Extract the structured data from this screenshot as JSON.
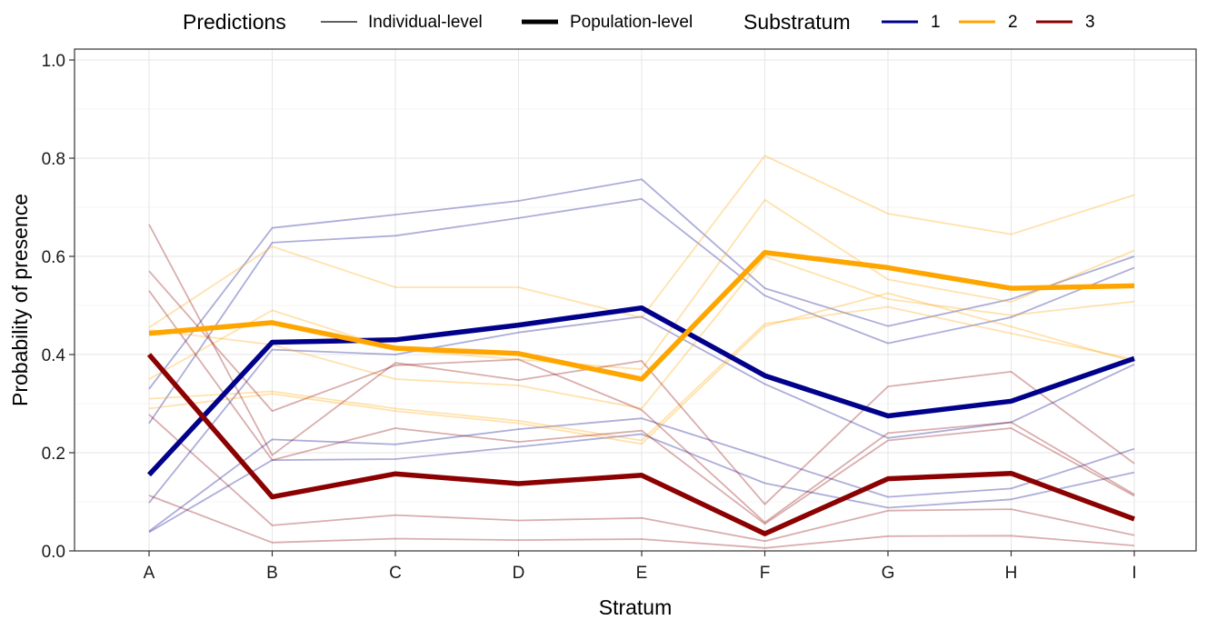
{
  "chart_data": {
    "type": "line",
    "xlabel": "Stratum",
    "ylabel": "Probability of presence",
    "categories": [
      "A",
      "B",
      "C",
      "D",
      "E",
      "F",
      "G",
      "H",
      "I"
    ],
    "ylim": [
      0,
      1.0
    ],
    "yticks": [
      0.0,
      0.2,
      0.4,
      0.6,
      0.8,
      1.0
    ],
    "ytick_labels": [
      "0.0",
      "0.2",
      "0.4",
      "0.6",
      "0.8",
      "1.0"
    ],
    "grid": true,
    "legend_position": "top",
    "legend": {
      "predictions_title": "Predictions",
      "predictions_items": [
        "Individual-level",
        "Population-level"
      ],
      "substratum_title": "Substratum",
      "substratum_items": [
        "1",
        "2",
        "3"
      ]
    },
    "colors": {
      "1": "#00008B",
      "2": "#FFA500",
      "3": "#8B0000"
    },
    "population_level": [
      {
        "name": "1",
        "values": [
          0.155,
          0.425,
          0.43,
          0.46,
          0.495,
          0.357,
          0.275,
          0.305,
          0.392
        ]
      },
      {
        "name": "2",
        "values": [
          0.443,
          0.465,
          0.413,
          0.402,
          0.35,
          0.608,
          0.577,
          0.535,
          0.54
        ]
      },
      {
        "name": "3",
        "values": [
          0.4,
          0.11,
          0.157,
          0.137,
          0.154,
          0.035,
          0.147,
          0.158,
          0.065
        ]
      }
    ],
    "individual_level": [
      {
        "name": "1",
        "values": [
          0.33,
          0.658,
          0.685,
          0.713,
          0.757,
          0.535,
          0.458,
          0.513,
          0.6
        ]
      },
      {
        "name": "1",
        "values": [
          0.26,
          0.628,
          0.642,
          0.678,
          0.717,
          0.52,
          0.423,
          0.476,
          0.577
        ]
      },
      {
        "name": "1",
        "values": [
          0.098,
          0.41,
          0.4,
          0.445,
          0.477,
          0.34,
          0.23,
          0.262,
          0.38
        ]
      },
      {
        "name": "1",
        "values": [
          0.04,
          0.227,
          0.217,
          0.248,
          0.27,
          0.19,
          0.11,
          0.127,
          0.208
        ]
      },
      {
        "name": "1",
        "values": [
          0.038,
          0.185,
          0.187,
          0.212,
          0.238,
          0.138,
          0.088,
          0.105,
          0.16
        ]
      },
      {
        "name": "2",
        "values": [
          0.455,
          0.62,
          0.537,
          0.537,
          0.475,
          0.805,
          0.687,
          0.645,
          0.725
        ]
      },
      {
        "name": "2",
        "values": [
          0.35,
          0.49,
          0.41,
          0.39,
          0.37,
          0.715,
          0.553,
          0.507,
          0.612
        ]
      },
      {
        "name": "2",
        "values": [
          0.45,
          0.42,
          0.35,
          0.337,
          0.29,
          0.6,
          0.513,
          0.48,
          0.508
        ]
      },
      {
        "name": "2",
        "values": [
          0.31,
          0.325,
          0.29,
          0.265,
          0.225,
          0.463,
          0.497,
          0.443,
          0.39
        ]
      },
      {
        "name": "2",
        "values": [
          0.29,
          0.32,
          0.285,
          0.26,
          0.218,
          0.458,
          0.525,
          0.457,
          0.385
        ]
      },
      {
        "name": "3",
        "values": [
          0.665,
          0.195,
          0.383,
          0.348,
          0.387,
          0.095,
          0.335,
          0.365,
          0.178
        ]
      },
      {
        "name": "3",
        "values": [
          0.57,
          0.285,
          0.378,
          0.39,
          0.287,
          0.058,
          0.24,
          0.262,
          0.115
        ]
      },
      {
        "name": "3",
        "values": [
          0.53,
          0.185,
          0.25,
          0.222,
          0.245,
          0.055,
          0.225,
          0.25,
          0.112
        ]
      },
      {
        "name": "3",
        "values": [
          0.278,
          0.052,
          0.073,
          0.062,
          0.067,
          0.02,
          0.082,
          0.085,
          0.032
        ]
      },
      {
        "name": "3",
        "values": [
          0.113,
          0.017,
          0.025,
          0.022,
          0.024,
          0.006,
          0.03,
          0.031,
          0.011
        ]
      }
    ]
  }
}
